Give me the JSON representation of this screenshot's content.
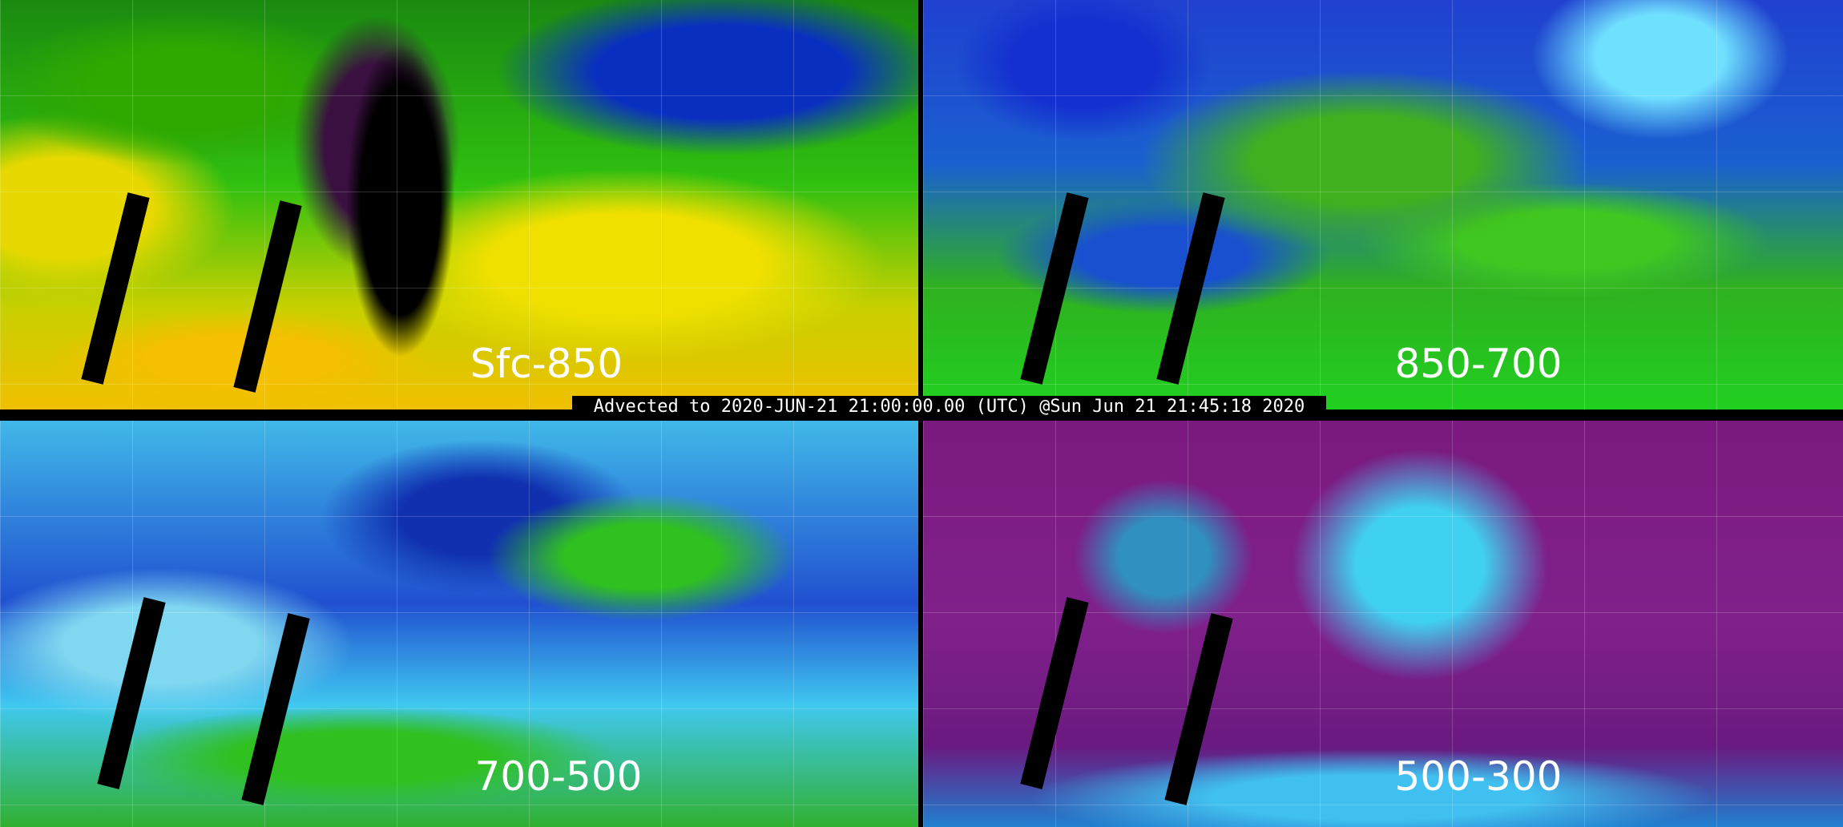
{
  "caption": "Advected to 2020-JUN-21 21:00:00.00 (UTC) @Sun Jun 21 21:45:18 2020",
  "panels": [
    {
      "label": "Sfc-850"
    },
    {
      "label": "850-700"
    },
    {
      "label": "700-500"
    },
    {
      "label": "500-300"
    }
  ],
  "colors": {
    "background": "#000000",
    "text": "#ffffff",
    "map_lines": "#c8c8c8"
  }
}
